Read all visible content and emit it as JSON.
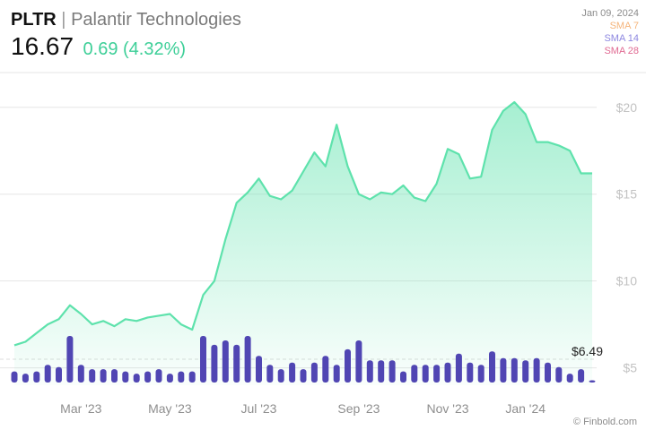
{
  "header": {
    "ticker": "PLTR",
    "separator": "|",
    "company": "Palantir Technologies",
    "price": "16.67",
    "change": "0.69 (4.32%)"
  },
  "legend": {
    "date": "Jan 09, 2024",
    "items": [
      {
        "label": "SMA 7",
        "color": "#f5b47a"
      },
      {
        "label": "SMA 14",
        "color": "#8d87e0"
      },
      {
        "label": "SMA 28",
        "color": "#e06a92"
      }
    ]
  },
  "watermark": "© Finbold.com",
  "colors": {
    "line": "#5ee2ac",
    "volume_bar": "#5046b3",
    "volume_line": "#dcdcdc",
    "grid": "#e6e6e6"
  },
  "chart_data": {
    "type": "line",
    "y_ticks": [
      {
        "value": 5,
        "label": "$5"
      },
      {
        "value": 10,
        "label": "$10"
      },
      {
        "value": 15,
        "label": "$15"
      },
      {
        "value": 20,
        "label": "$20"
      }
    ],
    "x_ticks": [
      {
        "index": 6,
        "label": "Mar '23"
      },
      {
        "index": 14,
        "label": "May '23"
      },
      {
        "index": 22,
        "label": "Jul '23"
      },
      {
        "index": 31,
        "label": "Sep '23"
      },
      {
        "index": 39,
        "label": "Nov '23"
      },
      {
        "index": 46,
        "label": "Jan '24"
      }
    ],
    "ylim": [
      4,
      22
    ],
    "price": [
      6.3,
      6.5,
      7.0,
      7.5,
      7.8,
      8.6,
      8.1,
      7.5,
      7.7,
      7.4,
      7.8,
      7.7,
      7.9,
      8.0,
      8.1,
      7.5,
      7.2,
      9.2,
      10.0,
      12.4,
      14.5,
      15.1,
      15.9,
      14.9,
      14.7,
      15.2,
      16.3,
      17.4,
      16.6,
      19.0,
      16.6,
      15.0,
      14.7,
      15.1,
      15.0,
      15.5,
      14.8,
      14.6,
      15.6,
      17.6,
      17.3,
      15.9,
      16.0,
      18.7,
      19.8,
      20.3,
      19.6,
      18.0,
      18.0,
      17.8,
      17.5,
      16.2,
      16.2
    ],
    "volume": [
      5,
      4,
      5,
      8,
      7,
      21,
      8,
      6,
      6,
      6,
      5,
      4,
      5,
      6,
      4,
      5,
      5,
      21,
      17,
      19,
      17,
      21,
      12,
      8,
      6,
      9,
      6,
      9,
      12,
      8,
      15,
      19,
      10,
      10,
      10,
      5,
      8,
      8,
      8,
      9,
      13,
      9,
      8,
      14,
      11,
      11,
      10,
      11,
      9,
      7,
      4,
      6,
      1
    ],
    "volume_level_label": "$6.49"
  }
}
